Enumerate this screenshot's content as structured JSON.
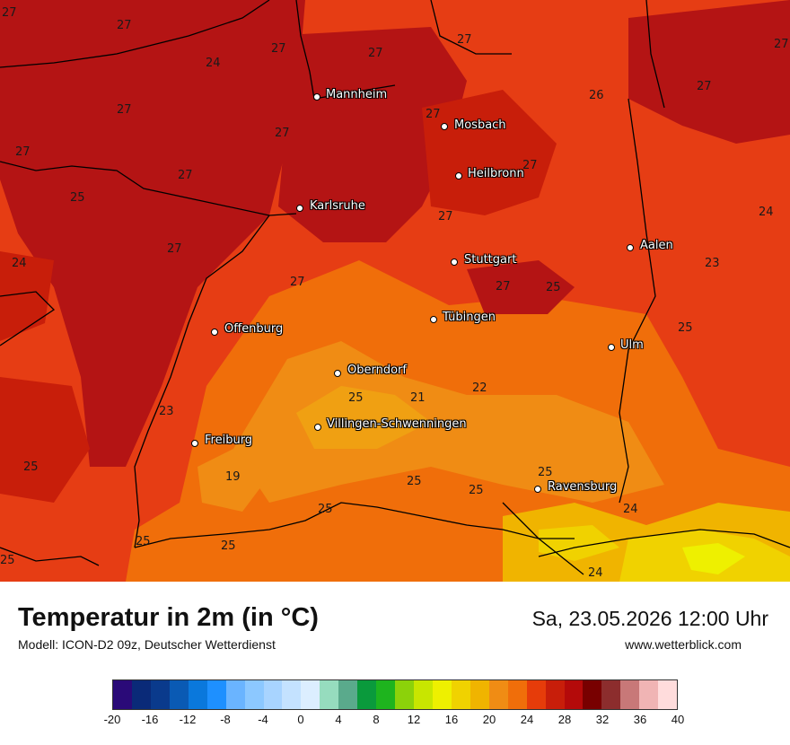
{
  "map": {
    "cities": [
      {
        "name": "Mannheim"
      },
      {
        "name": "Mosbach"
      },
      {
        "name": "Heilbronn"
      },
      {
        "name": "Karlsruhe"
      },
      {
        "name": "Aalen"
      },
      {
        "name": "Stuttgart"
      },
      {
        "name": "Tübingen"
      },
      {
        "name": "Offenburg"
      },
      {
        "name": "Ulm"
      },
      {
        "name": "Oberndorf"
      },
      {
        "name": "Villingen-Schwenningen"
      },
      {
        "name": "Freiburg"
      },
      {
        "name": "Ravensburg"
      }
    ],
    "temperatures": [
      "27",
      "27",
      "27",
      "24",
      "27",
      "27",
      "27",
      "26",
      "27",
      "27",
      "27",
      "27",
      "27",
      "25",
      "27",
      "24",
      "24",
      "27",
      "23",
      "27",
      "27",
      "25",
      "27",
      "25",
      "27",
      "22",
      "21",
      "23",
      "19",
      "25",
      "25",
      "25",
      "25",
      "25",
      "24",
      "25",
      "25",
      "24",
      "25",
      "25"
    ]
  },
  "footer": {
    "title": "Temperatur in 2m (in °C)",
    "subtitle": "Modell: ICON-D2 09z, Deutscher Wetterdienst",
    "datetime": "Sa, 23.05.2026 12:00 Uhr",
    "website": "www.wetterblick.com"
  },
  "colorbar": {
    "colors": [
      "#2a0a78",
      "#0a2a78",
      "#0a3a8c",
      "#0a5ab4",
      "#0a78dc",
      "#1e90ff",
      "#6ab4ff",
      "#8cc8ff",
      "#a8d4ff",
      "#c4e2ff",
      "#dceeff",
      "#96dcbe",
      "#5aaa8c",
      "#0a9a3c",
      "#1eb41e",
      "#8cd20a",
      "#c8e600",
      "#eef000",
      "#f0d200",
      "#f0b400",
      "#f08c14",
      "#f06e0a",
      "#e63c0a",
      "#c81e0a",
      "#b40a0a",
      "#780000",
      "#8c2d2d",
      "#c87878",
      "#f0b4b4",
      "#ffdcdc"
    ],
    "ticks": [
      "-20",
      "-16",
      "-12",
      "-8",
      "-4",
      "0",
      "4",
      "8",
      "12",
      "16",
      "20",
      "24",
      "28",
      "32",
      "36",
      "40"
    ]
  }
}
